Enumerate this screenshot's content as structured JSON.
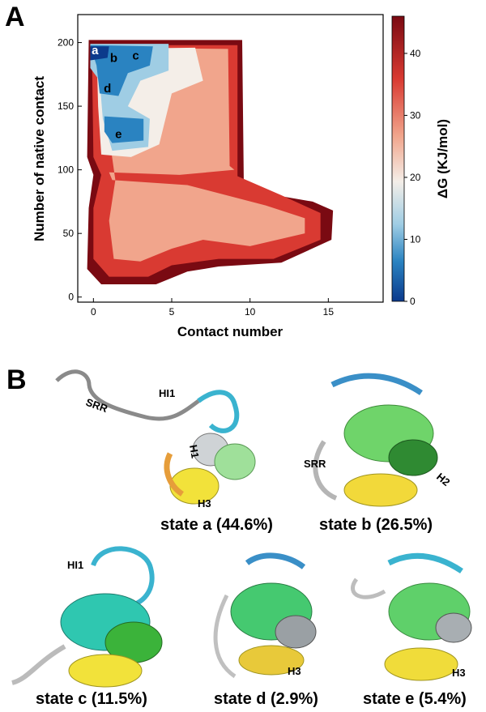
{
  "panel_a_label": "A",
  "panel_b_label": "B",
  "chart_data": {
    "type": "heatmap",
    "title": "",
    "xlabel": "Contact number",
    "ylabel": "Number of native contact",
    "xlim": [
      -1,
      18.5
    ],
    "ylim": [
      -4,
      222
    ],
    "xticks": [
      0,
      5,
      10,
      15
    ],
    "yticks": [
      0,
      50,
      100,
      150,
      200
    ],
    "colorbar": {
      "label": "ΔG (KJ/mol)",
      "range": [
        0,
        46
      ],
      "ticks": [
        0,
        10,
        20,
        30,
        40
      ],
      "colors": [
        "#0b3a8c",
        "#2a83c1",
        "#9fcde4",
        "#f4eee8",
        "#f1a58c",
        "#d93a32",
        "#7a0a12"
      ]
    },
    "grid": false,
    "basins": [
      {
        "name": "a",
        "x": 0.1,
        "y": 194,
        "dG": 2
      },
      {
        "name": "b",
        "x": 1.3,
        "y": 188,
        "dG": 4
      },
      {
        "name": "c",
        "x": 2.7,
        "y": 190,
        "dG": 5
      },
      {
        "name": "d",
        "x": 0.9,
        "y": 164,
        "dG": 6
      },
      {
        "name": "e",
        "x": 1.6,
        "y": 128,
        "dG": 8
      }
    ]
  },
  "structures": [
    {
      "label": "state a (44.6%)",
      "annotations": [
        "SRR",
        "HI1",
        "H1",
        "H3"
      ]
    },
    {
      "label": "state b (26.5%)",
      "annotations": [
        "SRR",
        "H2"
      ]
    },
    {
      "label": "state c (11.5%)",
      "annotations": [
        "HI1"
      ]
    },
    {
      "label": "state d (2.9%)",
      "annotations": [
        "H3"
      ]
    },
    {
      "label": "state e (5.4%)",
      "annotations": [
        "H3"
      ]
    }
  ]
}
